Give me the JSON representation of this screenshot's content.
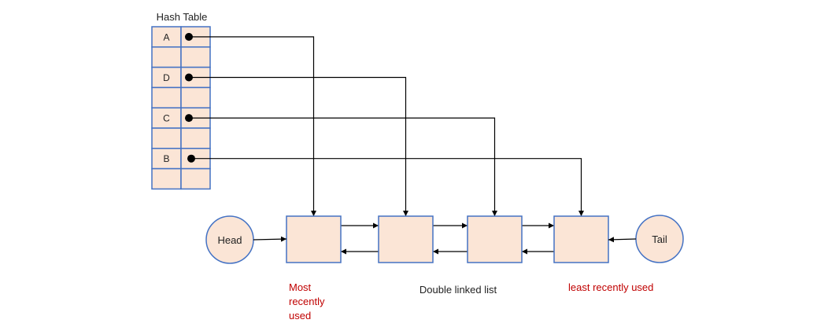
{
  "hash_table": {
    "title": "Hash Table",
    "rows": [
      {
        "key": "A",
        "has_pointer": true,
        "target_node": 0
      },
      {
        "key": "",
        "has_pointer": false
      },
      {
        "key": "D",
        "has_pointer": true,
        "target_node": 1
      },
      {
        "key": "",
        "has_pointer": false
      },
      {
        "key": "C",
        "has_pointer": true,
        "target_node": 2
      },
      {
        "key": "",
        "has_pointer": false
      },
      {
        "key": "B",
        "has_pointer": true,
        "target_node": 3
      },
      {
        "key": "",
        "has_pointer": false
      }
    ]
  },
  "linked_list": {
    "head_label": "Head",
    "tail_label": "Tail",
    "node_count": 4,
    "caption": "Double linked list",
    "most_recent_label": [
      "Most",
      "recently",
      "used"
    ],
    "least_recent_label": "least recently used"
  },
  "colors": {
    "node_fill": "#fbe5d6",
    "border": "#4472c4",
    "line": "#000000",
    "text": "#222222",
    "annotation": "#c00000"
  }
}
